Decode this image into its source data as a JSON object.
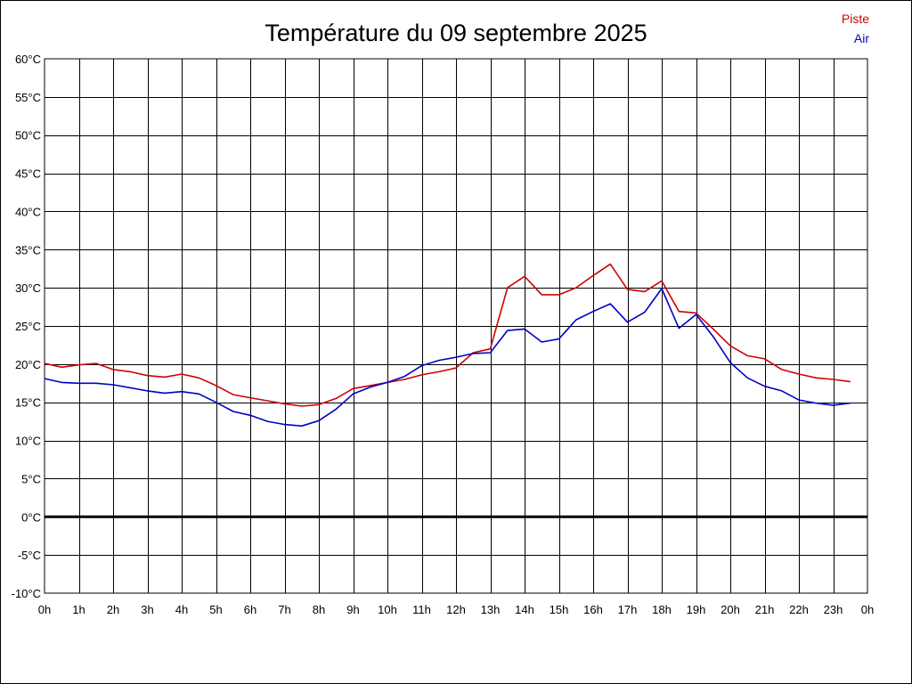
{
  "chart_data": {
    "type": "line",
    "title": "Température du 09 septembre 2025",
    "xlabel": "",
    "ylabel": "",
    "ylim": [
      -10,
      60
    ],
    "yticks": [
      60,
      55,
      50,
      45,
      40,
      35,
      30,
      25,
      20,
      15,
      10,
      5,
      0,
      -5,
      -10
    ],
    "ytick_labels": [
      "60°C",
      "55°C",
      "50°C",
      "45°C",
      "40°C",
      "35°C",
      "30°C",
      "25°C",
      "20°C",
      "15°C",
      "10°C",
      "5°C",
      "0°C",
      "-5°C",
      "-10°C"
    ],
    "xlim": [
      0,
      24
    ],
    "xtick_labels": [
      "0h",
      "1h",
      "2h",
      "3h",
      "4h",
      "5h",
      "6h",
      "7h",
      "8h",
      "9h",
      "10h",
      "11h",
      "12h",
      "13h",
      "14h",
      "15h",
      "16h",
      "17h",
      "18h",
      "19h",
      "20h",
      "21h",
      "22h",
      "23h",
      "0h"
    ],
    "grid": true,
    "zero_line": true,
    "legend_position": "top-right",
    "x": [
      0,
      0.5,
      1,
      1.5,
      2,
      2.5,
      3,
      3.5,
      4,
      4.5,
      5,
      5.5,
      6,
      6.5,
      7,
      7.5,
      8,
      8.5,
      9,
      9.5,
      10,
      10.5,
      11,
      11.5,
      12,
      12.5,
      13,
      13.5,
      14,
      14.5,
      15,
      15.5,
      16,
      16.5,
      17,
      17.5,
      18,
      18.5,
      19,
      19.5,
      20,
      20.5,
      21,
      21.5,
      22,
      22.5,
      23,
      23.5
    ],
    "series": [
      {
        "name": "Piste",
        "color": "#d00000",
        "values": [
          20.1,
          19.6,
          19.9,
          20.1,
          19.3,
          19.0,
          18.5,
          18.3,
          18.7,
          18.2,
          17.2,
          16.0,
          15.6,
          15.2,
          14.8,
          14.5,
          14.7,
          15.5,
          16.8,
          17.2,
          17.6,
          18.0,
          18.6,
          19.0,
          19.5,
          21.5,
          22.0,
          30.0,
          31.5,
          29.1,
          29.1,
          30.0,
          31.6,
          33.1,
          29.8,
          29.5,
          30.9,
          26.9,
          26.7,
          24.6,
          22.4,
          21.1,
          20.7,
          19.3,
          18.7,
          18.2,
          18.0,
          17.7
        ]
      },
      {
        "name": "Air",
        "color": "#0000c8",
        "values": [
          18.1,
          17.6,
          17.5,
          17.5,
          17.3,
          16.9,
          16.5,
          16.2,
          16.4,
          16.1,
          15.0,
          13.8,
          13.3,
          12.5,
          12.1,
          11.9,
          12.6,
          14.1,
          16.1,
          17.0,
          17.6,
          18.4,
          19.8,
          20.5,
          20.9,
          21.4,
          21.5,
          24.4,
          24.6,
          22.9,
          23.3,
          25.8,
          26.9,
          27.9,
          25.5,
          26.8,
          29.9,
          24.7,
          26.5,
          23.6,
          20.2,
          18.2,
          17.1,
          16.5,
          15.3,
          14.9,
          14.6,
          14.9
        ]
      }
    ]
  }
}
